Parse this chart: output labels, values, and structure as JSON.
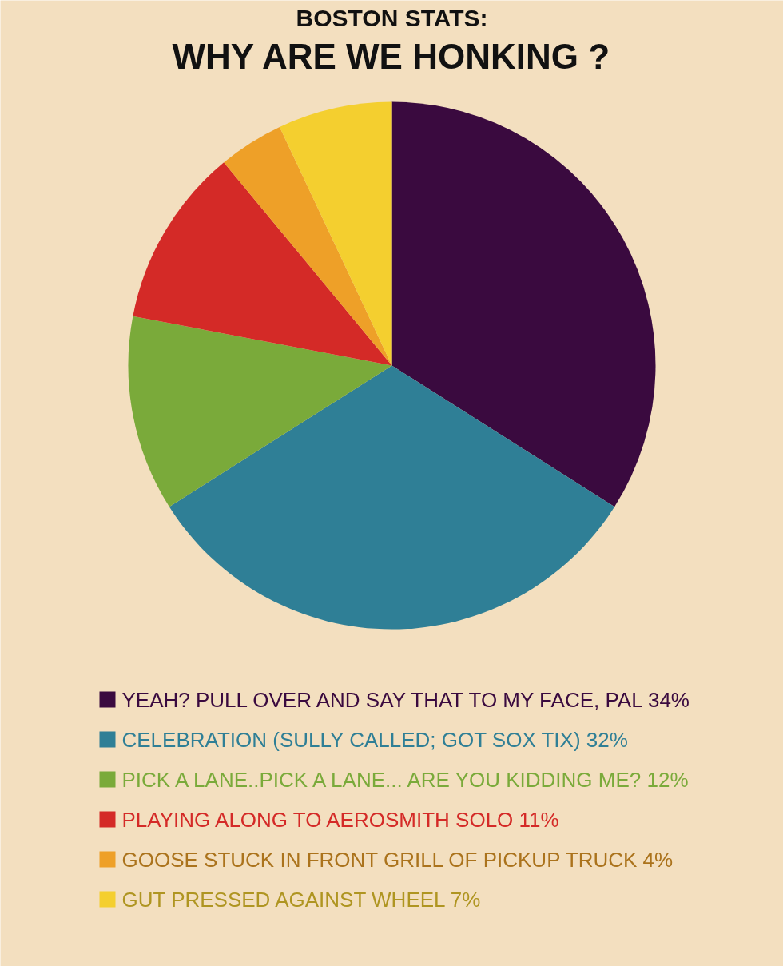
{
  "chart_data": {
    "type": "pie",
    "title": "BOSTON STATS:",
    "subtitle": "WHY ARE WE HONKING ?",
    "categories": [
      "YEAH? PULL OVER AND SAY THAT TO MY FACE, PAL",
      "CELEBRATION (SULLY CALLED; GOT SOX TIX)",
      "PICK A LANE..PICK A LANE... ARE YOU KIDDING ME?",
      "PLAYING ALONG TO AEROSMITH SOLO",
      "GOOSE STUCK IN FRONT GRILL OF PICKUP TRUCK",
      "GUT PRESSED AGAINST WHEEL"
    ],
    "values": [
      34,
      32,
      12,
      11,
      4,
      7
    ],
    "value_labels": [
      "34%",
      "32%",
      "12%",
      "11%",
      "4%",
      "7%"
    ],
    "colors": [
      "#3a0a3f",
      "#2f7f96",
      "#7aaa3a",
      "#d42a27",
      "#eea028",
      "#f4cf2f"
    ],
    "legend": "bottom"
  }
}
